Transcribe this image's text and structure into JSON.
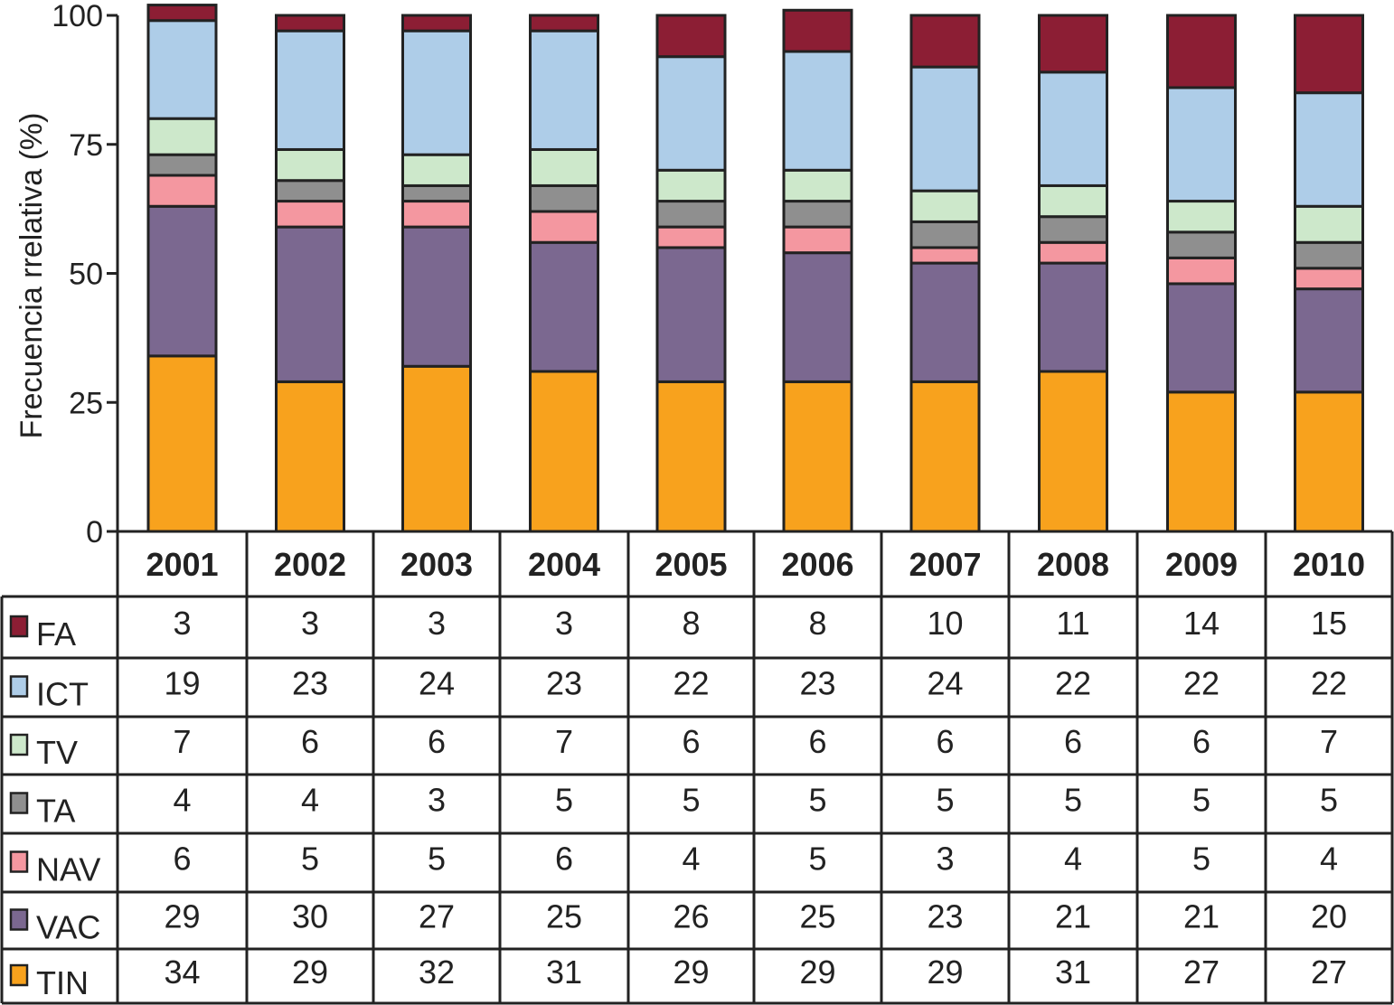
{
  "chart_data": {
    "type": "bar",
    "stacked": true,
    "normalized": true,
    "ylabel": "Frecuencia rrelativa (%)",
    "ylim": [
      0,
      100
    ],
    "yticks": [
      0,
      25,
      50,
      75,
      100
    ],
    "categories": [
      "2001",
      "2002",
      "2003",
      "2004",
      "2005",
      "2006",
      "2007",
      "2008",
      "2009",
      "2010"
    ],
    "series": [
      {
        "name": "FA",
        "color": "#8c1e34",
        "values": [
          3,
          3,
          3,
          3,
          8,
          8,
          10,
          11,
          14,
          15
        ]
      },
      {
        "name": "ICT",
        "color": "#aecde8",
        "values": [
          19,
          23,
          24,
          23,
          22,
          23,
          24,
          22,
          22,
          22
        ]
      },
      {
        "name": "TV",
        "color": "#cde8cb",
        "values": [
          7,
          6,
          6,
          7,
          6,
          6,
          6,
          6,
          6,
          7
        ]
      },
      {
        "name": "TA",
        "color": "#8f8f8f",
        "values": [
          4,
          4,
          3,
          5,
          5,
          5,
          5,
          5,
          5,
          5
        ]
      },
      {
        "name": "NAV",
        "color": "#f497a0",
        "values": [
          6,
          5,
          5,
          6,
          4,
          5,
          3,
          4,
          5,
          4
        ]
      },
      {
        "name": "VAC",
        "color": "#7b6890",
        "values": [
          29,
          30,
          27,
          25,
          26,
          25,
          23,
          21,
          21,
          20
        ]
      },
      {
        "name": "TIN",
        "color": "#f8a21d",
        "values": [
          34,
          29,
          32,
          31,
          29,
          29,
          29,
          31,
          27,
          27
        ]
      }
    ],
    "stack_order_bottom_to_top": [
      "TIN",
      "VAC",
      "NAV",
      "TA",
      "TV",
      "ICT",
      "FA"
    ],
    "table": {
      "rows_order": [
        "FA",
        "ICT",
        "TV",
        "TA",
        "NAV",
        "VAC",
        "TIN"
      ]
    }
  }
}
